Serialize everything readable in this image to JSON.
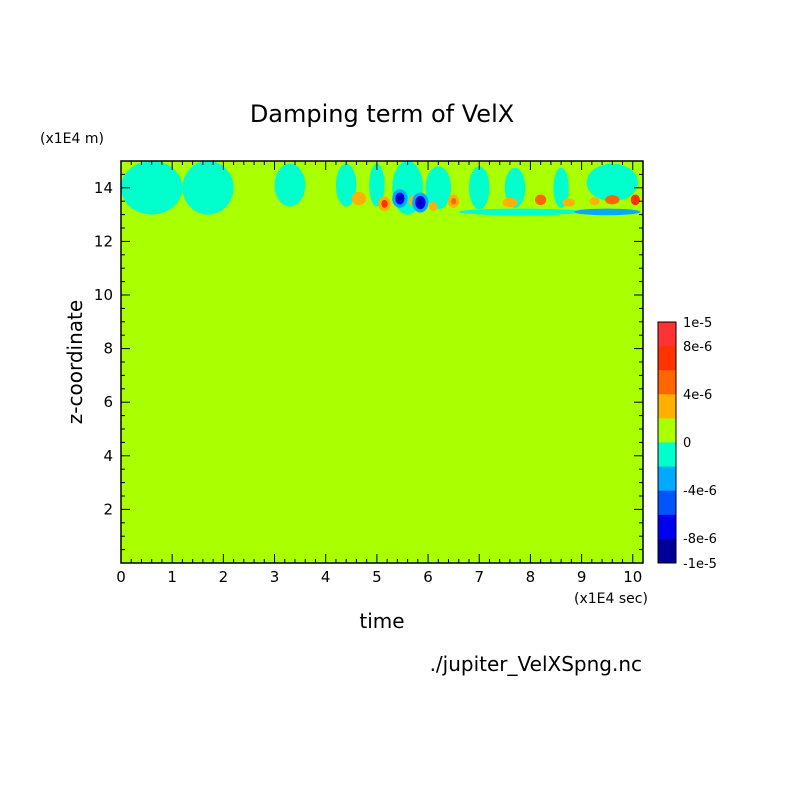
{
  "chart_data": {
    "type": "heatmap",
    "title": "Damping term of VelX",
    "xlabel": "time",
    "ylabel": "z-coordinate",
    "x_unit": "(x1E4 sec)",
    "y_unit": "(x1E4 m)",
    "source_file": "./jupiter_VelXSpng.nc",
    "xlim": [
      0,
      10.2
    ],
    "ylim": [
      0,
      15
    ],
    "x_ticks": [
      0,
      1,
      2,
      3,
      4,
      5,
      6,
      7,
      8,
      9,
      10
    ],
    "y_ticks": [
      2,
      4,
      6,
      8,
      10,
      12,
      14
    ],
    "background_value": 0,
    "background_color": "#aaff00",
    "colorbar": {
      "labels": [
        "1e-5",
        "8e-6",
        "4e-6",
        "0",
        "-4e-6",
        "-8e-6",
        "-1e-5"
      ],
      "levels": [
        {
          "color": "#ff3333",
          "value": 1e-05
        },
        {
          "color": "#ff3300",
          "value": 9e-06
        },
        {
          "color": "#ff6600",
          "value": 7e-06
        },
        {
          "color": "#ffb000",
          "value": 5e-06
        },
        {
          "color": "#aaff00",
          "value": 0
        },
        {
          "color": "#00ffcc",
          "value": -1e-06
        },
        {
          "color": "#00aaff",
          "value": -4e-06
        },
        {
          "color": "#0055ff",
          "value": -6e-06
        },
        {
          "color": "#0000ee",
          "value": -8e-06
        },
        {
          "color": "#000099",
          "value": -1e-05
        }
      ]
    },
    "features": [
      {
        "t": 0.6,
        "z": 14.0,
        "w": 1.2,
        "h": 2.0,
        "value": -1e-06
      },
      {
        "t": 1.7,
        "z": 14.0,
        "w": 1.0,
        "h": 2.0,
        "value": -1e-06
      },
      {
        "t": 3.3,
        "z": 14.1,
        "w": 0.6,
        "h": 1.6,
        "value": -1e-06
      },
      {
        "t": 4.4,
        "z": 14.1,
        "w": 0.4,
        "h": 1.6,
        "value": -1e-06
      },
      {
        "t": 5.0,
        "z": 14.1,
        "w": 0.3,
        "h": 1.6,
        "value": -1e-06
      },
      {
        "t": 5.6,
        "z": 14.0,
        "w": 0.6,
        "h": 2.0,
        "value": -1e-06
      },
      {
        "t": 6.2,
        "z": 14.0,
        "w": 0.5,
        "h": 1.6,
        "value": -1e-06
      },
      {
        "t": 7.0,
        "z": 14.0,
        "w": 0.4,
        "h": 1.6,
        "value": -1e-06
      },
      {
        "t": 7.7,
        "z": 14.0,
        "w": 0.4,
        "h": 1.5,
        "value": -1e-06
      },
      {
        "t": 8.6,
        "z": 14.0,
        "w": 0.3,
        "h": 1.5,
        "value": -1e-06
      },
      {
        "t": 9.6,
        "z": 14.2,
        "w": 1.0,
        "h": 1.4,
        "value": -1e-06
      },
      {
        "t": 7.8,
        "z": 13.1,
        "w": 2.4,
        "h": 0.25,
        "value": -1e-06
      },
      {
        "t": 9.5,
        "z": 13.1,
        "w": 1.3,
        "h": 0.25,
        "value": -4e-06
      },
      {
        "t": 4.65,
        "z": 13.6,
        "w": 0.28,
        "h": 0.5,
        "value": 5e-06
      },
      {
        "t": 5.15,
        "z": 13.4,
        "w": 0.25,
        "h": 0.55,
        "value": 5e-06
      },
      {
        "t": 5.15,
        "z": 13.4,
        "w": 0.12,
        "h": 0.3,
        "value": 9e-06
      },
      {
        "t": 5.45,
        "z": 13.6,
        "w": 0.3,
        "h": 0.7,
        "value": -4e-06
      },
      {
        "t": 5.45,
        "z": 13.6,
        "w": 0.18,
        "h": 0.45,
        "value": -8e-06
      },
      {
        "t": 5.45,
        "z": 13.6,
        "w": 0.07,
        "h": 0.18,
        "value": -1e-05
      },
      {
        "t": 5.7,
        "z": 13.5,
        "w": 0.14,
        "h": 0.4,
        "value": 5e-06
      },
      {
        "t": 5.85,
        "z": 13.45,
        "w": 0.32,
        "h": 0.75,
        "value": -4e-06
      },
      {
        "t": 5.85,
        "z": 13.45,
        "w": 0.2,
        "h": 0.5,
        "value": -8e-06
      },
      {
        "t": 5.85,
        "z": 13.45,
        "w": 0.07,
        "h": 0.18,
        "value": -1e-05
      },
      {
        "t": 6.5,
        "z": 13.5,
        "w": 0.22,
        "h": 0.5,
        "value": 5e-06
      },
      {
        "t": 6.5,
        "z": 13.5,
        "w": 0.1,
        "h": 0.25,
        "value": 7e-06
      },
      {
        "t": 6.1,
        "z": 13.3,
        "w": 0.16,
        "h": 0.35,
        "value": 5e-06
      },
      {
        "t": 7.6,
        "z": 13.45,
        "w": 0.3,
        "h": 0.35,
        "value": 5e-06
      },
      {
        "t": 8.2,
        "z": 13.55,
        "w": 0.22,
        "h": 0.4,
        "value": 7e-06
      },
      {
        "t": 8.75,
        "z": 13.45,
        "w": 0.25,
        "h": 0.3,
        "value": 5e-06
      },
      {
        "t": 9.25,
        "z": 13.5,
        "w": 0.2,
        "h": 0.3,
        "value": 5e-06
      },
      {
        "t": 9.6,
        "z": 13.55,
        "w": 0.28,
        "h": 0.35,
        "value": 7e-06
      },
      {
        "t": 10.05,
        "z": 13.55,
        "w": 0.18,
        "h": 0.4,
        "value": 9e-06
      }
    ]
  }
}
